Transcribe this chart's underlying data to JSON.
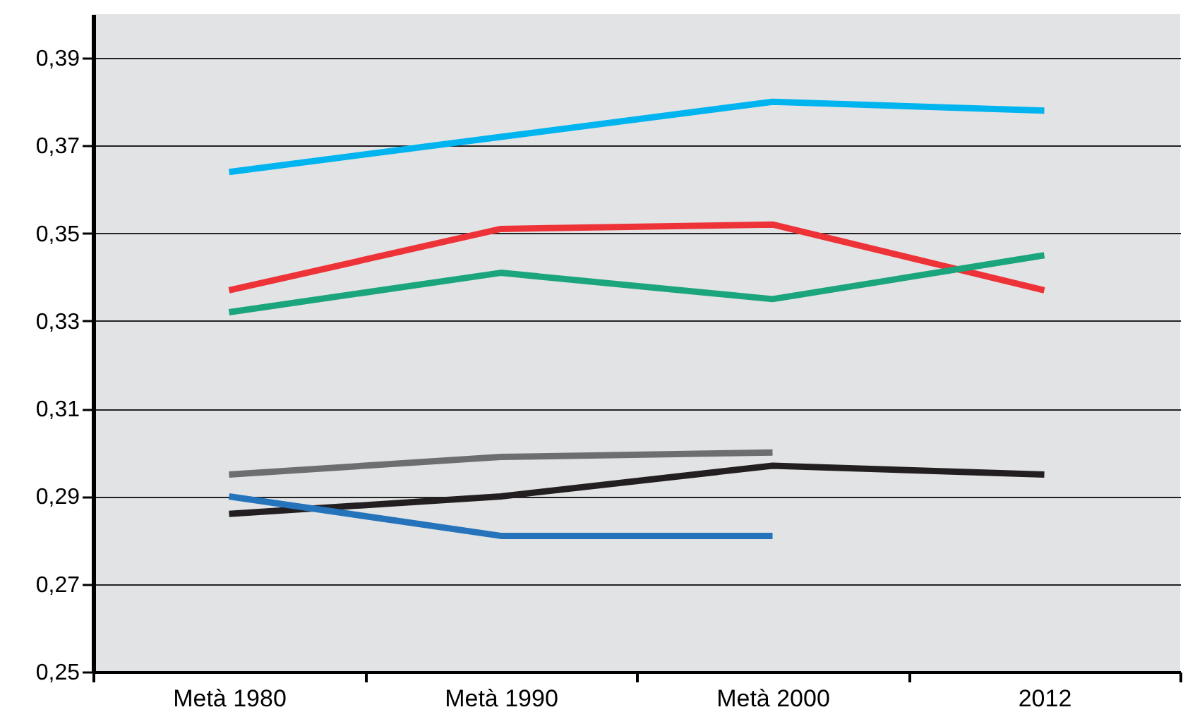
{
  "chart_data": {
    "type": "line",
    "categories": [
      "Metà 1980",
      "Metà 1990",
      "Metà 2000",
      "2012"
    ],
    "series": [
      {
        "color": "#00b5ef",
        "values": [
          0.364,
          0.372,
          0.38,
          0.378
        ]
      },
      {
        "color": "#ee3338",
        "values": [
          0.337,
          0.351,
          0.352,
          0.337
        ]
      },
      {
        "color": "#1aa57d",
        "values": [
          0.332,
          0.341,
          0.335,
          0.345
        ]
      },
      {
        "color": "#6d6e70",
        "values": [
          0.295,
          0.299,
          0.3,
          null
        ]
      },
      {
        "color": "#231f20",
        "values": [
          0.286,
          0.29,
          0.297,
          0.295
        ]
      },
      {
        "color": "#2574bb",
        "values": [
          0.29,
          0.281,
          0.281,
          null
        ]
      }
    ],
    "ylim": [
      0.25,
      0.4
    ],
    "yticks": [
      {
        "value": 0.25,
        "label": "0,25"
      },
      {
        "value": 0.27,
        "label": "0,27"
      },
      {
        "value": 0.29,
        "label": "0,29"
      },
      {
        "value": 0.31,
        "label": "0,31"
      },
      {
        "value": 0.33,
        "label": "0,33"
      },
      {
        "value": 0.35,
        "label": "0,35"
      },
      {
        "value": 0.37,
        "label": "0,37"
      },
      {
        "value": 0.39,
        "label": "0,39"
      }
    ],
    "grid": "y",
    "marker": "none",
    "line_style": "solid"
  }
}
